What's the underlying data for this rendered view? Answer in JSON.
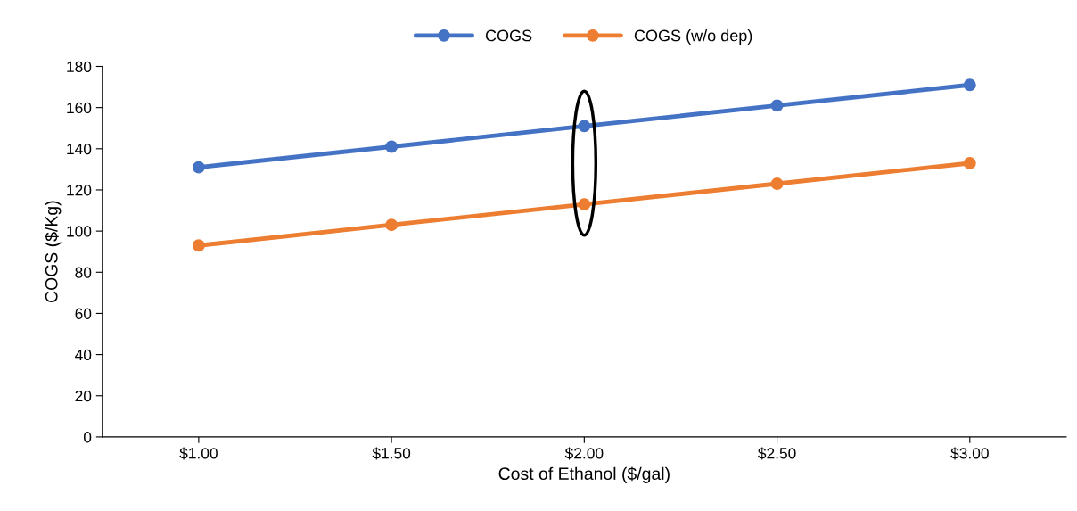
{
  "chart_data": {
    "type": "line",
    "xlabel": "Cost of Ethanol ($/gal)",
    "ylabel": "COGS ($/Kg)",
    "categories": [
      "$1.00",
      "$1.50",
      "$2.00",
      "$2.50",
      "$3.00"
    ],
    "series": [
      {
        "name": "COGS",
        "color": "#4472c4",
        "values": [
          131,
          141,
          151,
          161,
          171
        ]
      },
      {
        "name": "COGS (w/o dep)",
        "color": "#ed7d31",
        "values": [
          93,
          103,
          113,
          123,
          133
        ]
      }
    ],
    "ylim": [
      0,
      180
    ],
    "yticks": [
      0,
      20,
      40,
      60,
      80,
      100,
      120,
      140,
      160,
      180
    ],
    "grid": false,
    "legend": "top",
    "marker": "circle",
    "line_style": "solid"
  }
}
